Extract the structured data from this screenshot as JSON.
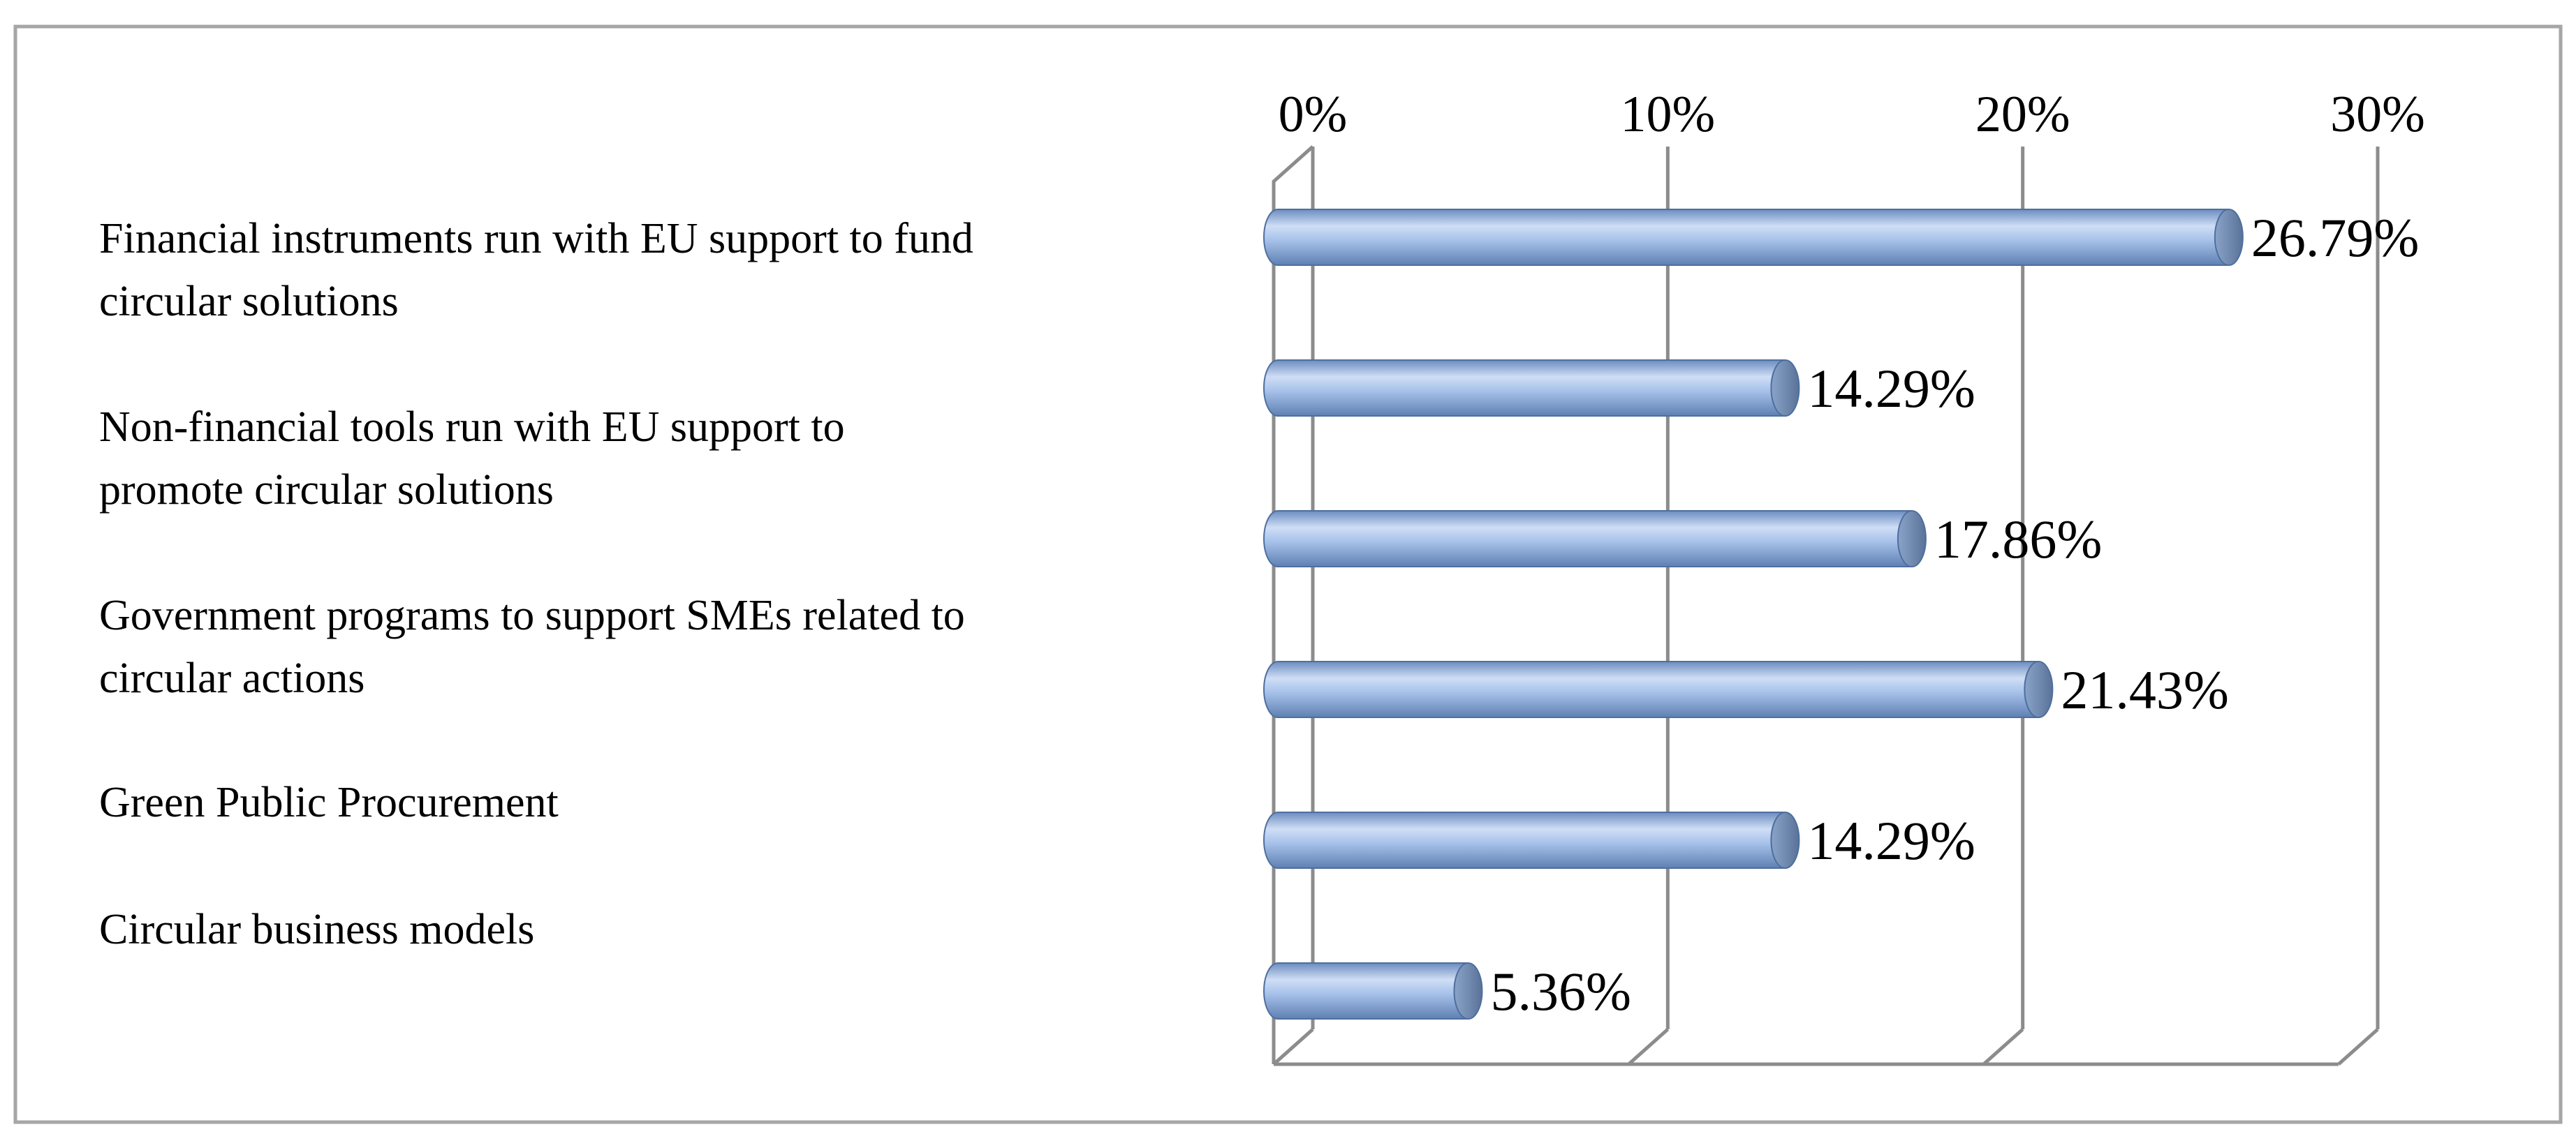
{
  "chart_data": {
    "type": "bar",
    "orientation": "horizontal",
    "style": "3d-cylinder",
    "categories": [
      "Financial instruments run with EU support to fund circular solutions",
      "",
      "Non-financial tools run with EU support to promote circular solutions",
      "Government programs to support SMEs related to circular actions",
      "Green Public Procurement",
      "Circular business models"
    ],
    "category_label_lines": [
      [
        "Financial instruments run with EU support to fund",
        "circular solutions"
      ],
      [
        "Non-financial tools run with EU support to",
        "promote circular solutions"
      ],
      [
        "Government programs to support SMEs related to",
        "circular actions"
      ],
      [
        "Green Public Procurement"
      ],
      [
        "Circular business models"
      ]
    ],
    "values": [
      26.79,
      14.29,
      17.86,
      21.43,
      14.29,
      5.36
    ],
    "value_labels": [
      "26.79%",
      "14.29%",
      "17.86%",
      "21.43%",
      "14.29%",
      "5.36%"
    ],
    "x_ticks": [
      "0%",
      "10%",
      "20%",
      "30%"
    ],
    "x_tick_values": [
      0,
      10,
      20,
      30
    ],
    "xlim": [
      0,
      30
    ],
    "title": "",
    "xlabel": "",
    "ylabel": "",
    "grid": true,
    "legend": "none",
    "colors": {
      "bar_fill": "#a7c2ea",
      "bar_fill_light": "#cfdef5",
      "bar_fill_dark": "#6b8cc0",
      "bar_end_cap": "#6f88ad",
      "bar_outline": "#4e6f9e",
      "gridline": "#8c8c8c",
      "frame_border": "#a6a6a6"
    }
  }
}
